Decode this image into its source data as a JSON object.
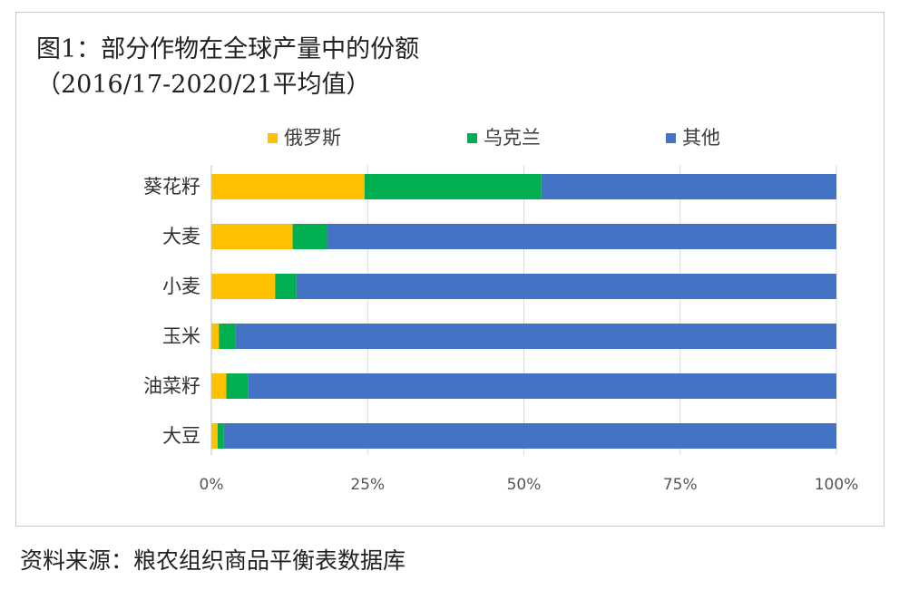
{
  "title_line1": "图1：部分作物在全球产量中的份额",
  "title_line2": "（2016/17-2020/21平均值）",
  "source_note": "资料来源：粮农组织商品平衡表数据库",
  "colors": {
    "俄罗斯": "#FFC000",
    "乌克兰": "#00B050",
    "其他": "#4472C4"
  },
  "chart_data": {
    "type": "bar",
    "orientation": "horizontal",
    "stacked": "percent",
    "title": "图1：部分作物在全球产量中的份额（2016/17-2020/21平均值）",
    "categories": [
      "葵花籽",
      "大麦",
      "小麦",
      "玉米",
      "油菜籽",
      "大豆"
    ],
    "series": [
      {
        "name": "俄罗斯",
        "values": [
          24.5,
          13,
          10.2,
          1.2,
          2.4,
          1
        ]
      },
      {
        "name": "乌克兰",
        "values": [
          28.3,
          5.5,
          3.4,
          2.7,
          3.5,
          1
        ]
      },
      {
        "name": "其他",
        "values": [
          47.2,
          81.5,
          86.4,
          96.1,
          94.1,
          98
        ]
      }
    ],
    "xlim": [
      0,
      100
    ],
    "x_ticks": [
      "0%",
      "25%",
      "50%",
      "75%",
      "100%"
    ],
    "grid": true,
    "legend_position": "top"
  }
}
